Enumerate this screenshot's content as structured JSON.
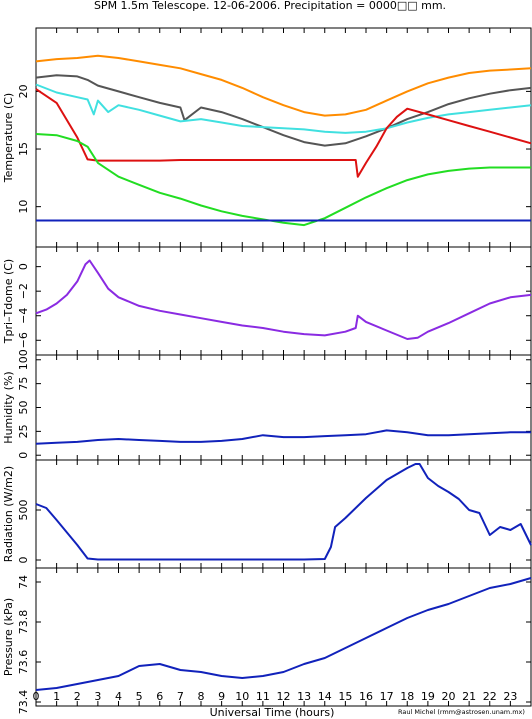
{
  "title": "SPM 1.5m Telescope. 12-06-2006. Precipitation = 0000□□ mm.",
  "xlabel": "Universal Time (hours)",
  "credit": "Raul Michel (rmm@astrosen.unam.mx)",
  "chart_data": [
    {
      "type": "line",
      "ylabel": "Temperature (C)",
      "xlim": [
        0,
        24
      ],
      "ylim": [
        6.5,
        25.5
      ],
      "yticks": [
        10,
        15,
        20
      ],
      "series": [
        {
          "color": "#ff8c00",
          "x": [
            0,
            1,
            2,
            3,
            4,
            5,
            6,
            7,
            8,
            9,
            10,
            11,
            12,
            13,
            14,
            15,
            16,
            17,
            18,
            19,
            20,
            21,
            22,
            23,
            24
          ],
          "y": [
            22.6,
            22.8,
            22.9,
            23.1,
            22.9,
            22.6,
            22.3,
            22.0,
            21.5,
            21.0,
            20.3,
            19.5,
            18.8,
            18.2,
            17.9,
            18.0,
            18.4,
            19.2,
            20.0,
            20.7,
            21.2,
            21.6,
            21.8,
            21.9,
            22.0
          ]
        },
        {
          "color": "#555555",
          "x": [
            0,
            1,
            2,
            2.5,
            3,
            4,
            5,
            6,
            7,
            7.2,
            8,
            9,
            10,
            11,
            12,
            13,
            14,
            15,
            16,
            17,
            18,
            19,
            20,
            21,
            22,
            23,
            24
          ],
          "y": [
            21.2,
            21.4,
            21.3,
            21.0,
            20.5,
            20.0,
            19.5,
            19.0,
            18.6,
            17.5,
            18.6,
            18.2,
            17.6,
            16.9,
            16.2,
            15.6,
            15.3,
            15.5,
            16.1,
            16.8,
            17.6,
            18.2,
            18.9,
            19.4,
            19.8,
            20.1,
            20.3
          ]
        },
        {
          "color": "#40e0e0",
          "x": [
            0,
            1,
            2,
            2.5,
            2.8,
            3,
            3.5,
            4,
            5,
            6,
            7,
            8,
            9,
            10,
            11,
            12,
            13,
            14,
            15,
            16,
            17,
            18,
            19,
            20,
            21,
            22,
            23,
            24
          ],
          "y": [
            20.6,
            19.9,
            19.5,
            19.3,
            18.0,
            19.2,
            18.2,
            18.8,
            18.4,
            17.9,
            17.4,
            17.6,
            17.3,
            17.0,
            16.9,
            16.8,
            16.7,
            16.5,
            16.4,
            16.5,
            16.8,
            17.3,
            17.7,
            18.0,
            18.2,
            18.4,
            18.6,
            18.8
          ]
        },
        {
          "color": "#dd1111",
          "x": [
            0,
            1,
            2,
            2.5,
            3,
            4,
            5,
            6,
            7,
            8,
            9,
            10,
            11,
            12,
            13,
            14,
            15,
            15.5,
            15.6,
            16,
            16.5,
            17,
            17.5,
            18,
            19,
            20,
            21,
            22,
            23,
            24
          ],
          "y": [
            20.2,
            19.0,
            16.0,
            14.1,
            14.0,
            14.0,
            14.0,
            14.0,
            14.05,
            14.05,
            14.05,
            14.05,
            14.05,
            14.05,
            14.05,
            14.05,
            14.05,
            14.05,
            12.6,
            13.8,
            15.2,
            16.8,
            17.8,
            18.5,
            18.0,
            17.5,
            17.0,
            16.5,
            16.0,
            15.5
          ]
        },
        {
          "color": "#22dd22",
          "x": [
            0,
            1,
            2,
            2.5,
            3,
            4,
            5,
            6,
            7,
            8,
            9,
            10,
            11,
            12,
            13,
            14,
            15,
            16,
            17,
            18,
            19,
            20,
            21,
            22,
            23,
            24
          ],
          "y": [
            16.3,
            16.2,
            15.7,
            15.2,
            13.8,
            12.6,
            11.9,
            11.2,
            10.7,
            10.1,
            9.6,
            9.2,
            8.9,
            8.6,
            8.4,
            9.0,
            9.9,
            10.8,
            11.6,
            12.3,
            12.8,
            13.1,
            13.3,
            13.4,
            13.4,
            13.4
          ]
        },
        {
          "color": "#1122bb",
          "x": [
            0,
            24
          ],
          "y": [
            8.8,
            8.8
          ]
        }
      ]
    },
    {
      "type": "line",
      "ylabel": "Tpri–Tdome (C)",
      "xlim": [
        0,
        24
      ],
      "ylim": [
        -7.2,
        1.6
      ],
      "yticks": [
        -6,
        -4,
        -2,
        0
      ],
      "yticklabels": [
        "−6",
        "−4",
        "−2",
        "0"
      ],
      "series": [
        {
          "color": "#8a2be2",
          "x": [
            0,
            0.5,
            1,
            1.5,
            2,
            2.4,
            2.6,
            3,
            3.5,
            4,
            5,
            6,
            7,
            8,
            9,
            10,
            11,
            12,
            13,
            14,
            15,
            15.5,
            15.6,
            16,
            17,
            18,
            18.5,
            19,
            20,
            21,
            22,
            23,
            24
          ],
          "y": [
            -3.8,
            -3.5,
            -3.0,
            -2.3,
            -1.2,
            0.2,
            0.5,
            -0.5,
            -1.8,
            -2.5,
            -3.2,
            -3.6,
            -3.9,
            -4.2,
            -4.5,
            -4.8,
            -5.0,
            -5.3,
            -5.5,
            -5.6,
            -5.3,
            -5.0,
            -4.0,
            -4.5,
            -5.2,
            -5.9,
            -5.8,
            -5.3,
            -4.6,
            -3.8,
            -3.0,
            -2.5,
            -2.3
          ]
        }
      ]
    },
    {
      "type": "line",
      "ylabel": "Humidity (%)",
      "xlim": [
        0,
        24
      ],
      "ylim": [
        -5,
        105
      ],
      "yticks": [
        0,
        25,
        50,
        75,
        100
      ],
      "series": [
        {
          "color": "#1122bb",
          "x": [
            0,
            1,
            2,
            3,
            4,
            5,
            6,
            7,
            8,
            9,
            10,
            11,
            12,
            13,
            14,
            15,
            16,
            17,
            18,
            19,
            20,
            21,
            22,
            23,
            24
          ],
          "y": [
            12,
            13,
            14,
            16,
            17,
            16,
            15,
            14,
            14,
            15,
            17,
            21,
            19,
            19,
            20,
            21,
            22,
            26,
            24,
            21,
            21,
            22,
            23,
            24,
            24
          ]
        }
      ]
    },
    {
      "type": "line",
      "ylabel": "Radiation (W/m2)",
      "xlim": [
        0,
        24
      ],
      "ylim": [
        -80,
        1000
      ],
      "yticks": [
        0,
        500
      ],
      "series": [
        {
          "color": "#1122bb",
          "x": [
            0,
            0.5,
            1,
            2,
            2.5,
            3,
            6,
            9,
            12,
            13,
            14,
            14.3,
            14.5,
            15,
            16,
            17,
            18,
            18.4,
            18.6,
            19,
            19.5,
            20,
            20.5,
            21,
            21.5,
            22,
            22.5,
            23,
            23.5,
            24
          ],
          "y": [
            560,
            520,
            400,
            150,
            15,
            5,
            5,
            5,
            5,
            5,
            10,
            130,
            330,
            420,
            620,
            800,
            920,
            960,
            960,
            820,
            740,
            680,
            610,
            500,
            470,
            250,
            330,
            300,
            360,
            150
          ]
        }
      ]
    },
    {
      "type": "line",
      "ylabel": "Pressure (kPa)",
      "xlim": [
        0,
        24
      ],
      "ylim": [
        73.38,
        74.07
      ],
      "yticks": [
        73.4,
        73.6,
        73.8,
        74.0
      ],
      "yticklabels": [
        "73.4",
        "73.6",
        "73.8",
        "74"
      ],
      "series": [
        {
          "color": "#1122bb",
          "x": [
            0,
            1,
            2,
            3,
            4,
            5,
            6,
            7,
            8,
            9,
            10,
            11,
            12,
            13,
            14,
            15,
            16,
            17,
            18,
            19,
            20,
            21,
            22,
            23,
            24
          ],
          "y": [
            73.46,
            73.47,
            73.49,
            73.51,
            73.53,
            73.58,
            73.59,
            73.56,
            73.55,
            73.53,
            73.52,
            73.53,
            73.55,
            73.59,
            73.62,
            73.67,
            73.72,
            73.77,
            73.82,
            73.86,
            73.89,
            73.93,
            73.97,
            73.99,
            74.02
          ]
        }
      ]
    }
  ],
  "xticks": [
    0,
    1,
    2,
    3,
    4,
    5,
    6,
    7,
    8,
    9,
    10,
    11,
    12,
    13,
    14,
    15,
    16,
    17,
    18,
    19,
    20,
    21,
    22,
    23
  ]
}
